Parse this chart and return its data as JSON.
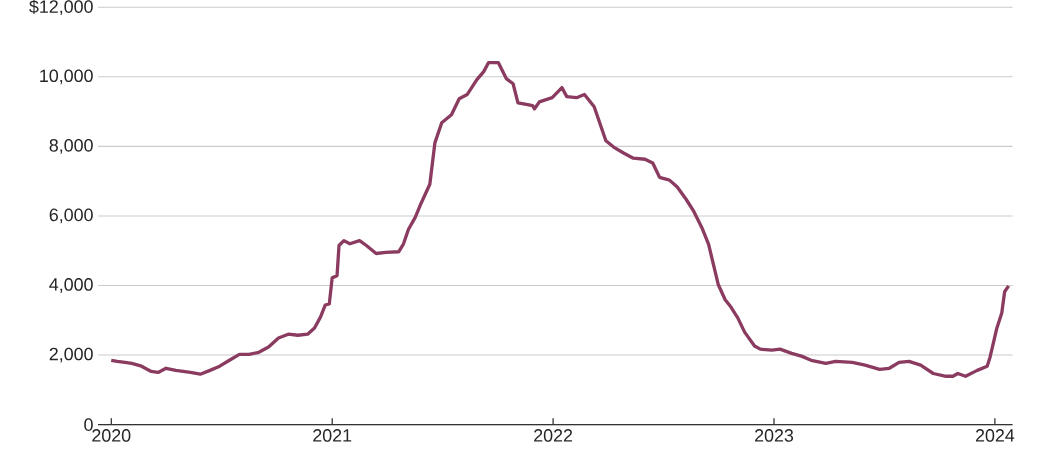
{
  "chart_data": {
    "type": "line",
    "x": [
      2020.0,
      2020.027,
      2020.062,
      2020.093,
      2020.137,
      2020.181,
      2020.212,
      2020.248,
      2020.292,
      2020.358,
      2020.403,
      2020.447,
      2020.491,
      2020.535,
      2020.58,
      2020.624,
      2020.668,
      2020.712,
      2020.757,
      2020.801,
      2020.845,
      2020.889,
      2020.92,
      2020.947,
      2020.969,
      2020.987,
      2021.0,
      2021.022,
      2021.031,
      2021.053,
      2021.08,
      2021.124,
      2021.155,
      2021.199,
      2021.243,
      2021.301,
      2021.323,
      2021.345,
      2021.376,
      2021.398,
      2021.442,
      2021.465,
      2021.496,
      2021.54,
      2021.575,
      2021.611,
      2021.655,
      2021.686,
      2021.708,
      2021.752,
      2021.788,
      2021.819,
      2021.841,
      2021.885,
      2021.907,
      2021.916,
      2021.938,
      2021.996,
      2022.04,
      2022.062,
      2022.106,
      2022.142,
      2022.186,
      2022.239,
      2022.274,
      2022.319,
      2022.363,
      2022.416,
      2022.451,
      2022.482,
      2022.527,
      2022.562,
      2022.602,
      2022.637,
      2022.673,
      2022.704,
      2022.748,
      2022.779,
      2022.805,
      2022.836,
      2022.867,
      2022.912,
      2022.938,
      2022.991,
      2023.027,
      2023.08,
      2023.124,
      2023.168,
      2023.235,
      2023.279,
      2023.354,
      2023.412,
      2023.478,
      2023.522,
      2023.566,
      2023.611,
      2023.664,
      2023.721,
      2023.779,
      2023.81,
      2023.832,
      2023.867,
      2023.92,
      2023.965,
      2023.978,
      2024.009,
      2024.031,
      2024.044,
      2024.062
    ],
    "series": [
      {
        "color": "#8a3b5f",
        "values": [
          1850,
          1820,
          1790,
          1760,
          1680,
          1530,
          1500,
          1620,
          1560,
          1500,
          1450,
          1560,
          1680,
          1850,
          2020,
          2020,
          2080,
          2230,
          2490,
          2600,
          2570,
          2600,
          2780,
          3090,
          3440,
          3470,
          4220,
          4280,
          5150,
          5290,
          5200,
          5290,
          5150,
          4920,
          4950,
          4970,
          5200,
          5610,
          5960,
          6300,
          6910,
          8100,
          8680,
          8910,
          9370,
          9490,
          9920,
          10150,
          10410,
          10410,
          9950,
          9800,
          9250,
          9200,
          9170,
          9080,
          9280,
          9400,
          9690,
          9430,
          9400,
          9490,
          9140,
          8160,
          7980,
          7810,
          7660,
          7630,
          7520,
          7110,
          7030,
          6830,
          6480,
          6130,
          5670,
          5180,
          4020,
          3590,
          3380,
          3070,
          2660,
          2260,
          2170,
          2140,
          2170,
          2050,
          1970,
          1850,
          1760,
          1820,
          1790,
          1710,
          1590,
          1620,
          1790,
          1820,
          1710,
          1470,
          1390,
          1390,
          1470,
          1390,
          1560,
          1680,
          1940,
          2780,
          3210,
          3820,
          3990
        ]
      }
    ],
    "xlim": [
      2019.94,
      2024.08
    ],
    "xticks": [
      2020,
      2021,
      2022,
      2023,
      2024
    ],
    "ylim": [
      0,
      12000
    ],
    "yticks": [
      0,
      {
        "value": 2000,
        "label": "2,000"
      },
      {
        "value": 4000,
        "label": "4,000"
      },
      {
        "value": 6000,
        "label": "6,000"
      },
      {
        "value": 8000,
        "label": "8,000"
      },
      {
        "value": 10000,
        "label": "10,000"
      },
      {
        "value": 12000,
        "label": "$12,000"
      }
    ],
    "grid": "y"
  }
}
